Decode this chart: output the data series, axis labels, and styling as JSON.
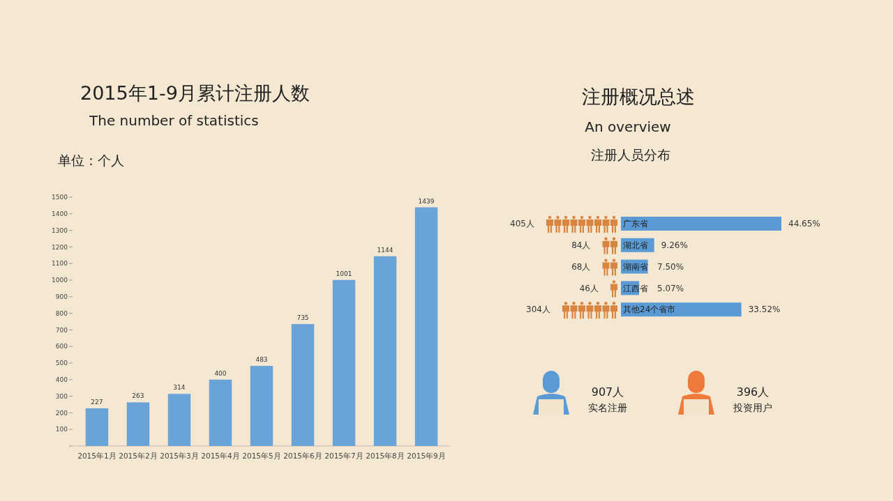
{
  "chart_data": [
    {
      "type": "bar",
      "title": "2015年1-9月累计注册人数",
      "subtitle": "The number of statistics",
      "ylabel": "单位：个人",
      "categories": [
        "2015年1月",
        "2015年2月",
        "2015年3月",
        "2015年4月",
        "2015年5月",
        "2015年6月",
        "2015年7月",
        "2015年8月",
        "2015年9月"
      ],
      "values": [
        227,
        263,
        314,
        400,
        483,
        735,
        1001,
        1144,
        1439
      ],
      "color": "#6aa3d8",
      "ylim": [
        0,
        1500
      ],
      "yticks": [
        {
          "value": 0,
          "label": null
        },
        100,
        200,
        300,
        400,
        500,
        600,
        700,
        800,
        900,
        1000,
        1100,
        1200,
        1300,
        1400,
        1500
      ],
      "grid": false,
      "data_labels": true
    },
    {
      "type": "bar",
      "orientation": "horizontal",
      "title": "注册概况总述",
      "subtitle": "An overview",
      "categories": [
        "广东省",
        "湖北省",
        "湖南省",
        "江西省",
        "其他24个省市"
      ],
      "values": [
        44.65,
        9.26,
        7.5,
        5.07,
        33.52
      ],
      "color": "#5b9bd5",
      "value_labels": [
        "44.65%",
        "9.26%",
        "7.50%",
        "5.07%",
        "33.52%"
      ],
      "annotations": [
        "注册人员分布",
        "405人",
        "84人",
        "68人",
        "46人",
        "304人"
      ]
    },
    {
      "type": "other",
      "annotations": [
        "907人",
        "实名注册",
        "396人",
        "投资用户"
      ]
    }
  ]
}
